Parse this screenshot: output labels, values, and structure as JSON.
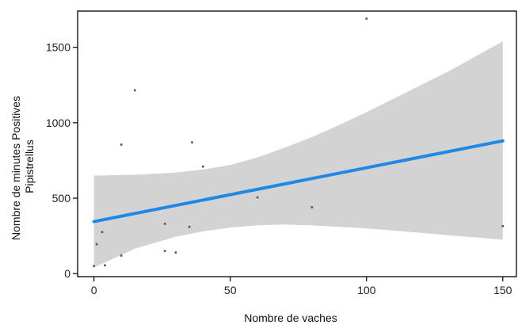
{
  "chart_data": {
    "type": "scatter",
    "xlabel": "Nombre de vaches",
    "ylabel_lines": [
      "Nombre de minutes Positives",
      "Pipistrellus"
    ],
    "xlim": [
      -6,
      155
    ],
    "ylim": [
      -20,
      1740
    ],
    "x_ticks": [
      0,
      50,
      100,
      150
    ],
    "x_tick_labels": [
      "0",
      "50",
      "100",
      "150"
    ],
    "y_ticks": [
      0,
      500,
      1000,
      1500
    ],
    "y_tick_labels": [
      "0",
      "500",
      "1000",
      "1500"
    ],
    "grid": false,
    "points": [
      {
        "x": 0,
        "y": 50
      },
      {
        "x": 1,
        "y": 195
      },
      {
        "x": 3,
        "y": 275
      },
      {
        "x": 4,
        "y": 55
      },
      {
        "x": 10,
        "y": 120
      },
      {
        "x": 10,
        "y": 855
      },
      {
        "x": 15,
        "y": 1215
      },
      {
        "x": 26,
        "y": 150
      },
      {
        "x": 26,
        "y": 330
      },
      {
        "x": 30,
        "y": 140
      },
      {
        "x": 35,
        "y": 310
      },
      {
        "x": 36,
        "y": 870
      },
      {
        "x": 40,
        "y": 710
      },
      {
        "x": 60,
        "y": 505
      },
      {
        "x": 80,
        "y": 440
      },
      {
        "x": 100,
        "y": 1690
      },
      {
        "x": 150,
        "y": 315
      }
    ],
    "fit_line": {
      "x": [
        0,
        150
      ],
      "y": [
        345,
        880
      ],
      "color": "#1e88e5"
    },
    "confidence_band": {
      "x": [
        0,
        15,
        30,
        40,
        50,
        60,
        70,
        80,
        90,
        100,
        110,
        120,
        130,
        140,
        150
      ],
      "lower": [
        40,
        165,
        245,
        280,
        305,
        320,
        325,
        320,
        310,
        300,
        285,
        270,
        255,
        240,
        225
      ],
      "upper": [
        650,
        655,
        670,
        690,
        720,
        770,
        835,
        905,
        985,
        1070,
        1160,
        1250,
        1340,
        1440,
        1540
      ],
      "color": "#d3d3d3"
    },
    "point_color": "#555555"
  }
}
